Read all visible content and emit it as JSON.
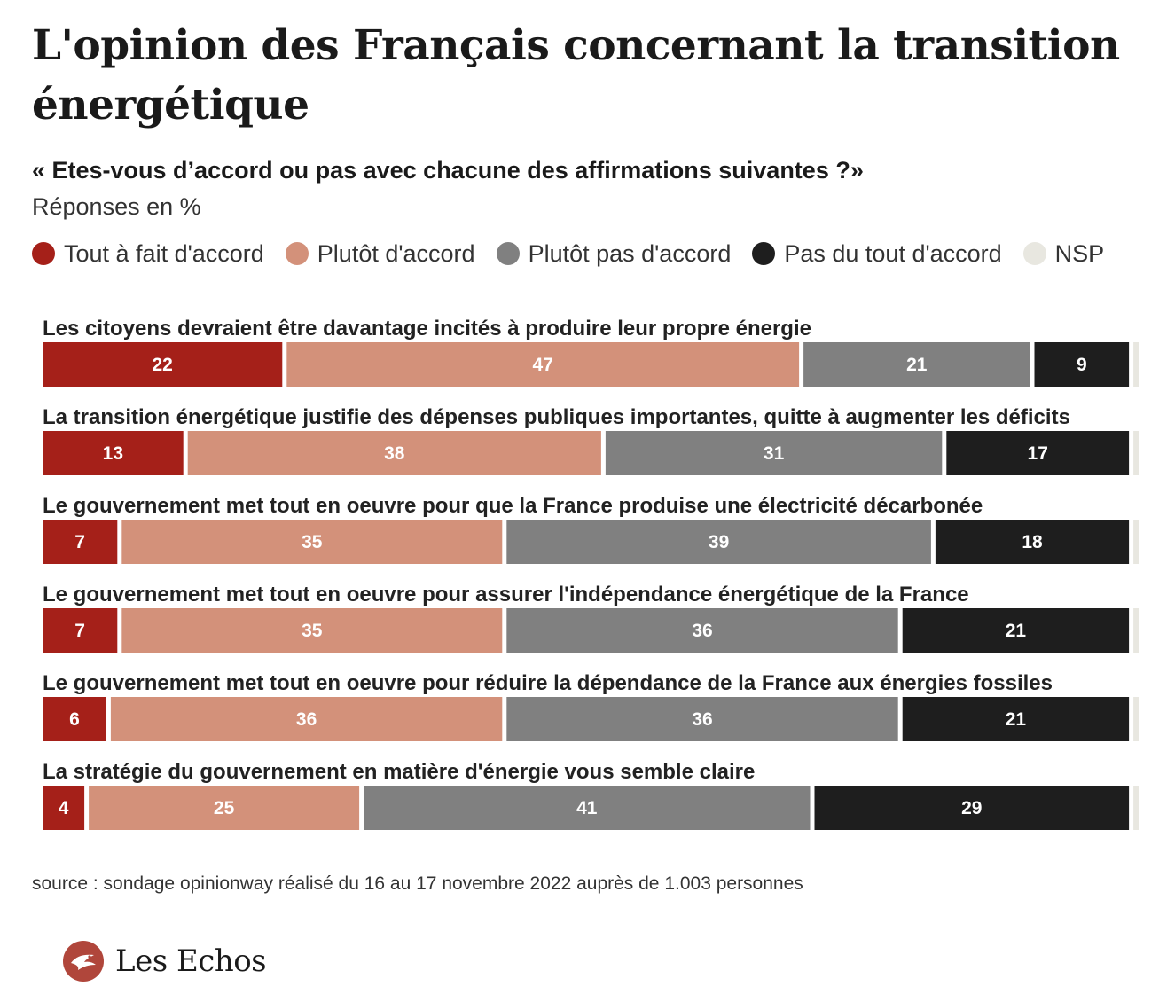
{
  "title": "L'opinion des Français concernant la transition énergétique",
  "subtitle": "« Etes-vous d’accord ou pas avec chacune des affirmations suivantes ?»",
  "units": "Réponses en %",
  "source": "source : sondage opinionway réalisé du 16 au 17 novembre 2022 auprès de 1.003 personnes",
  "brand": "Les Echos",
  "colors": {
    "tout_a_fait": "#a52019",
    "plutot": "#d3917a",
    "plutot_pas": "#808080",
    "pas_du_tout": "#1e1e1e",
    "nsp": "#e8e7e0"
  },
  "chart_data": {
    "type": "bar",
    "orientation": "horizontal",
    "stacked": true,
    "xlim": [
      0,
      100
    ],
    "categories": [
      "Les citoyens devraient être davantage incités à produire leur propre énergie",
      "La transition énergétique justifie des dépenses publiques importantes, quitte à augmenter les déficits",
      "Le gouvernement met tout en oeuvre pour que la France produise une électricité décarbonée",
      "Le gouvernement met tout en oeuvre pour assurer l'indépendance énergétique de la France",
      "Le gouvernement met tout en oeuvre pour réduire la dépendance de la France aux énergies fossiles",
      "La stratégie du gouvernement en matière d'énergie vous semble claire"
    ],
    "series": [
      {
        "name": "Tout à fait d'accord",
        "color": "#a52019",
        "values": [
          22,
          13,
          7,
          7,
          6,
          4
        ]
      },
      {
        "name": "Plutôt d'accord",
        "color": "#d3917a",
        "values": [
          47,
          38,
          35,
          35,
          36,
          25
        ]
      },
      {
        "name": "Plutôt pas d'accord",
        "color": "#808080",
        "values": [
          21,
          31,
          39,
          36,
          36,
          41
        ]
      },
      {
        "name": "Pas du tout d'accord",
        "color": "#1e1e1e",
        "values": [
          9,
          17,
          18,
          21,
          21,
          29
        ]
      },
      {
        "name": "NSP",
        "color": "#e8e7e0",
        "values": [
          1,
          1,
          1,
          1,
          1,
          1
        ]
      }
    ],
    "legend": "top-left",
    "grid": false
  }
}
